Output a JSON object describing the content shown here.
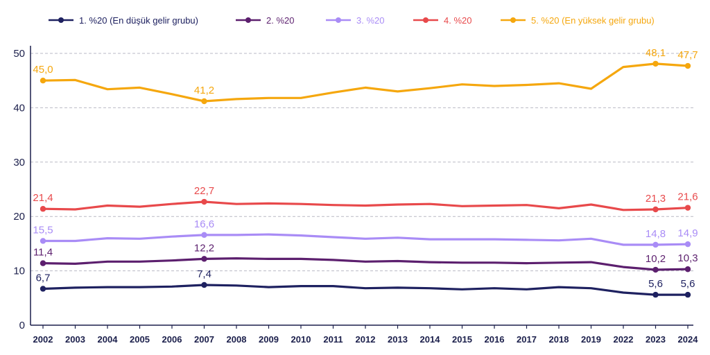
{
  "chart_data": {
    "type": "line",
    "title": "",
    "xlabel": "",
    "ylabel": "",
    "ylim": [
      0,
      50
    ],
    "yticks": [
      "0",
      "10",
      "20",
      "30",
      "40",
      "50"
    ],
    "categories": [
      "2002",
      "2003",
      "2004",
      "2005",
      "2006",
      "2007",
      "2008",
      "2009",
      "2010",
      "2011",
      "2012",
      "2013",
      "2014",
      "2015",
      "2016",
      "2017",
      "2018",
      "2019",
      "2022",
      "2023",
      "2024"
    ],
    "grid": true,
    "legend_position": "top",
    "series": [
      {
        "name": "1. %20 (En düşük gelir grubu)",
        "color": "#1e2160",
        "values": [
          6.7,
          6.9,
          7.0,
          7.0,
          7.1,
          7.4,
          7.3,
          7.0,
          7.2,
          7.2,
          6.8,
          6.9,
          6.8,
          6.6,
          6.8,
          6.6,
          7.0,
          6.8,
          6.0,
          5.6,
          5.6
        ],
        "labels": [
          {
            "index": 0,
            "text": "6,7"
          },
          {
            "index": 5,
            "text": "7,4"
          },
          {
            "index": 19,
            "text": "5,6"
          },
          {
            "index": 20,
            "text": "5,6"
          }
        ]
      },
      {
        "name": "2. %20",
        "color": "#5c1f6e",
        "values": [
          11.4,
          11.3,
          11.7,
          11.7,
          11.9,
          12.2,
          12.3,
          12.2,
          12.2,
          12.0,
          11.7,
          11.8,
          11.6,
          11.5,
          11.5,
          11.4,
          11.5,
          11.6,
          10.7,
          10.2,
          10.3
        ],
        "labels": [
          {
            "index": 0,
            "text": "11,4"
          },
          {
            "index": 5,
            "text": "12,2"
          },
          {
            "index": 19,
            "text": "10,2"
          },
          {
            "index": 20,
            "text": "10,3"
          }
        ]
      },
      {
        "name": "3. %20",
        "color": "#a98cf6",
        "values": [
          15.5,
          15.5,
          16.0,
          15.9,
          16.3,
          16.6,
          16.6,
          16.7,
          16.5,
          16.2,
          15.9,
          16.1,
          15.8,
          15.8,
          15.8,
          15.7,
          15.6,
          15.9,
          14.8,
          14.8,
          14.9
        ],
        "labels": [
          {
            "index": 0,
            "text": "15,5"
          },
          {
            "index": 5,
            "text": "16,6"
          },
          {
            "index": 19,
            "text": "14,8"
          },
          {
            "index": 20,
            "text": "14,9"
          }
        ]
      },
      {
        "name": "4. %20",
        "color": "#e8494b",
        "values": [
          21.4,
          21.3,
          22.0,
          21.8,
          22.3,
          22.7,
          22.3,
          22.4,
          22.3,
          22.1,
          22.0,
          22.2,
          22.3,
          21.9,
          22.0,
          22.1,
          21.5,
          22.2,
          21.2,
          21.3,
          21.6
        ],
        "labels": [
          {
            "index": 0,
            "text": "21,4"
          },
          {
            "index": 5,
            "text": "22,7"
          },
          {
            "index": 19,
            "text": "21,3"
          },
          {
            "index": 20,
            "text": "21,6"
          }
        ]
      },
      {
        "name": "5. %20 (En yüksek gelir grubu)",
        "color": "#f5a70e",
        "values": [
          45.0,
          45.1,
          43.4,
          43.7,
          42.5,
          41.2,
          41.6,
          41.8,
          41.8,
          42.8,
          43.7,
          43.0,
          43.6,
          44.3,
          44.0,
          44.2,
          44.5,
          43.5,
          47.5,
          48.1,
          47.7
        ],
        "labels": [
          {
            "index": 0,
            "text": "45,0"
          },
          {
            "index": 5,
            "text": "41,2"
          },
          {
            "index": 19,
            "text": "48,1"
          },
          {
            "index": 20,
            "text": "47,7"
          }
        ]
      }
    ]
  }
}
